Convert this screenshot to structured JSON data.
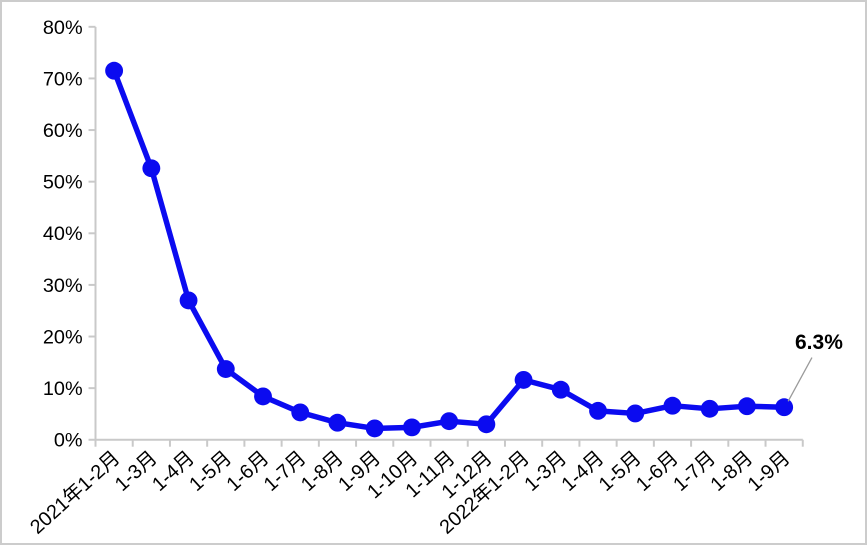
{
  "chart_data": {
    "type": "line",
    "title": "",
    "xlabel": "",
    "ylabel": "",
    "categories": [
      "2021年1-2月",
      "1-3月",
      "1-4月",
      "1-5月",
      "1-6月",
      "1-7月",
      "1-8月",
      "1-9月",
      "1-10月",
      "1-11月",
      "1-12月",
      "2022年1-2月",
      "1-3月",
      "1-4月",
      "1-5月",
      "1-6月",
      "1-7月",
      "1-8月",
      "1-9月"
    ],
    "values": [
      71.5,
      52.6,
      27.0,
      13.7,
      8.4,
      5.3,
      3.3,
      2.2,
      2.4,
      3.6,
      3.0,
      11.6,
      9.7,
      5.6,
      5.1,
      6.6,
      6.0,
      6.5,
      6.3
    ],
    "ylim": [
      0,
      80
    ],
    "yticks": {
      "values": [
        0,
        10,
        20,
        30,
        40,
        50,
        60,
        70,
        80
      ],
      "labels": [
        "0%",
        "10%",
        "20%",
        "30%",
        "40%",
        "50%",
        "60%",
        "70%",
        "80%"
      ]
    },
    "grid": false,
    "legend": "none",
    "x_label_rotation_deg": -42,
    "annotation": {
      "text": "6.3%",
      "target_index": 18
    },
    "colors": {
      "line": "#0b0bf0",
      "marker": "#0b0bf0",
      "axis": "#c9c9c9",
      "text": "#000000",
      "leader": "#9a9a9a",
      "background": "#ffffff",
      "frame_border": "#cccccc"
    }
  }
}
